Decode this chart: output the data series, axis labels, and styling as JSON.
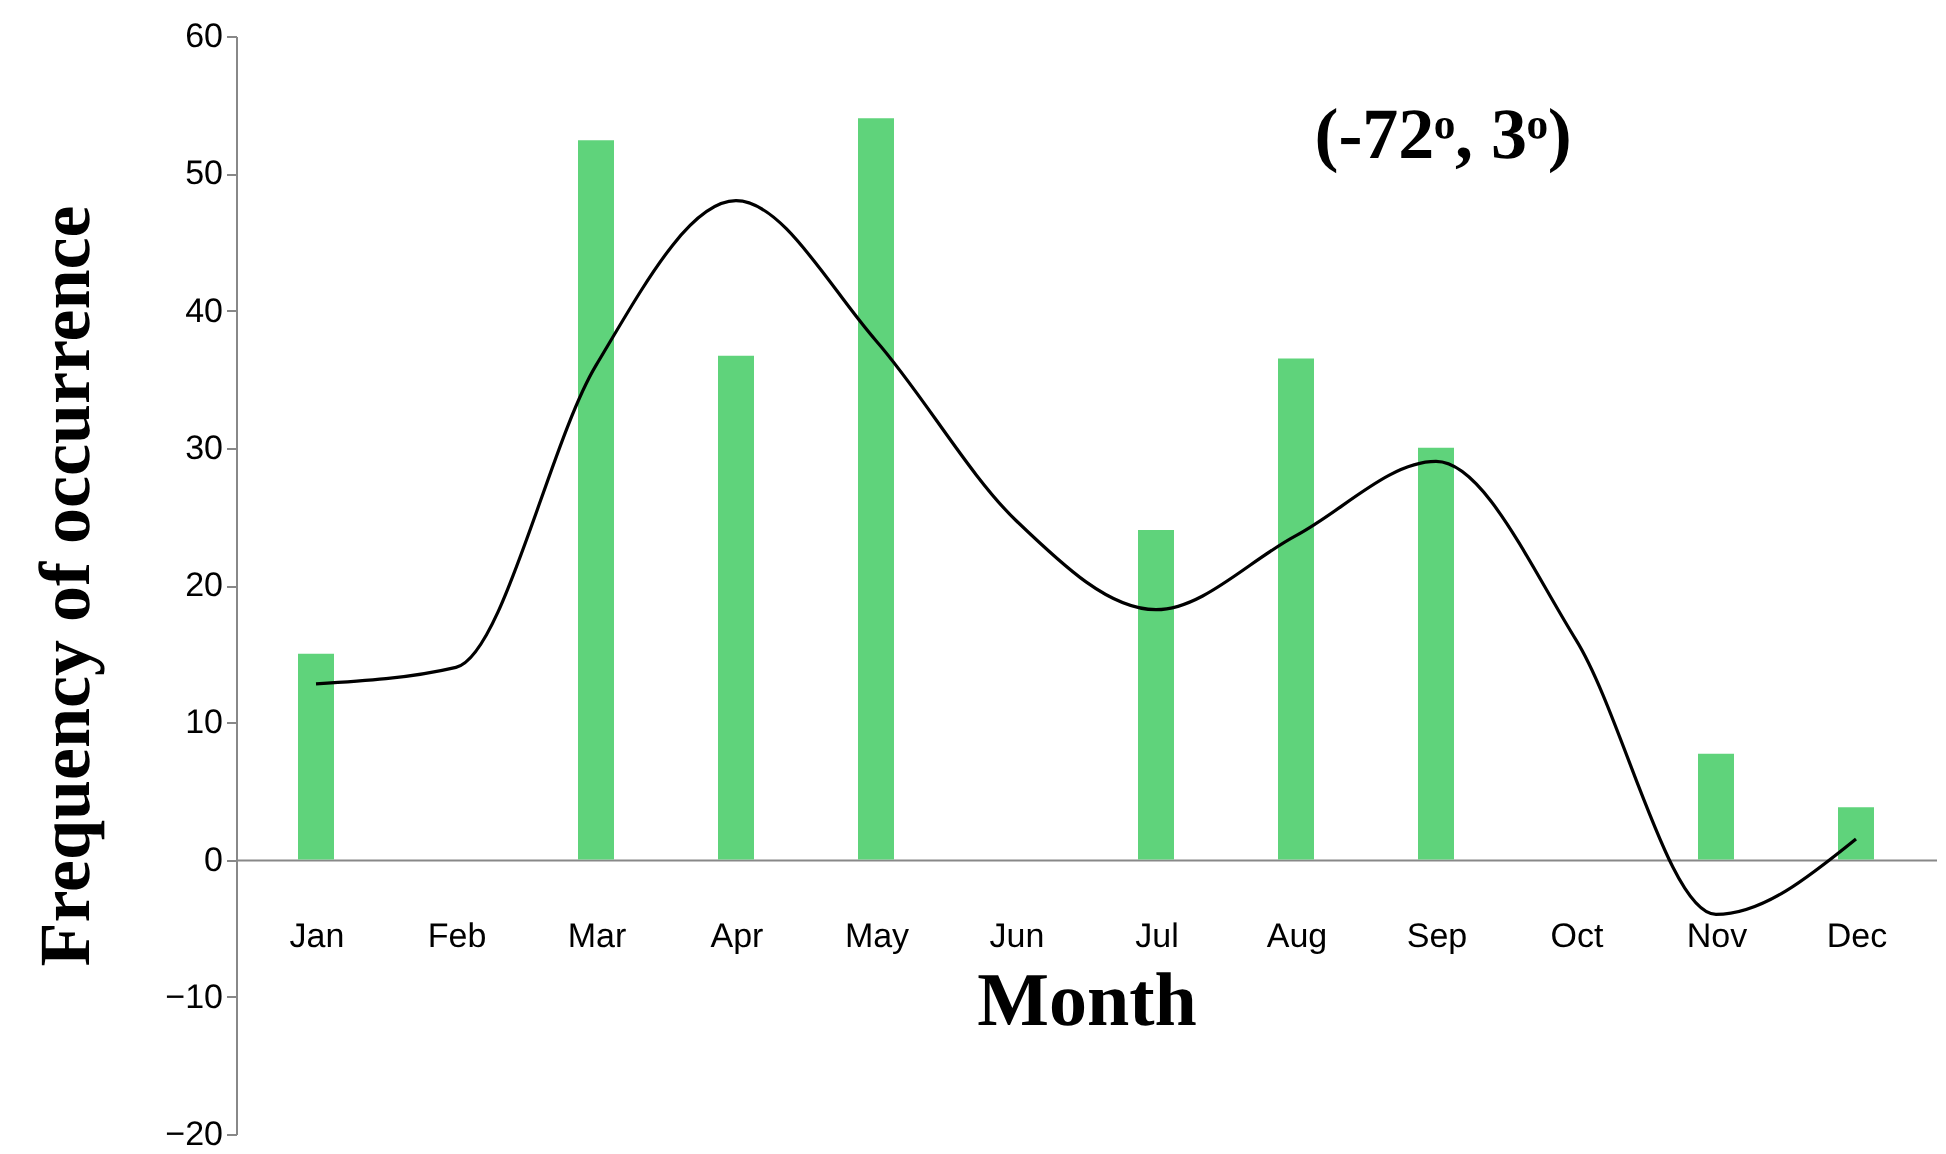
{
  "chart_data": {
    "type": "bar",
    "xlabel": "Month",
    "ylabel": "Frequency of occurrence",
    "annotations": [
      "(-72ᵒ, 3ᵒ)"
    ],
    "categories": [
      "Jan",
      "Feb",
      "Mar",
      "Apr",
      "May",
      "Jun",
      "Jul",
      "Aug",
      "Sep",
      "Oct",
      "Nov",
      "Dec"
    ],
    "ylim": [
      -20,
      60
    ],
    "yticks": [
      -20,
      -10,
      0,
      10,
      20,
      30,
      40,
      50,
      60
    ],
    "grid": false,
    "series": [
      {
        "color": "#5fd37b",
        "values": [
          15,
          null,
          52.4,
          36.7,
          54,
          null,
          24,
          36.5,
          30,
          null,
          7.7,
          3.8
        ]
      },
      {
        "type": "line",
        "color": "#000000",
        "marker": "none",
        "line_style": "solid",
        "values": [
          12.8,
          14,
          36,
          48,
          37.8,
          24.7,
          18.2,
          23.6,
          29,
          16,
          -4,
          1.5
        ]
      }
    ]
  }
}
